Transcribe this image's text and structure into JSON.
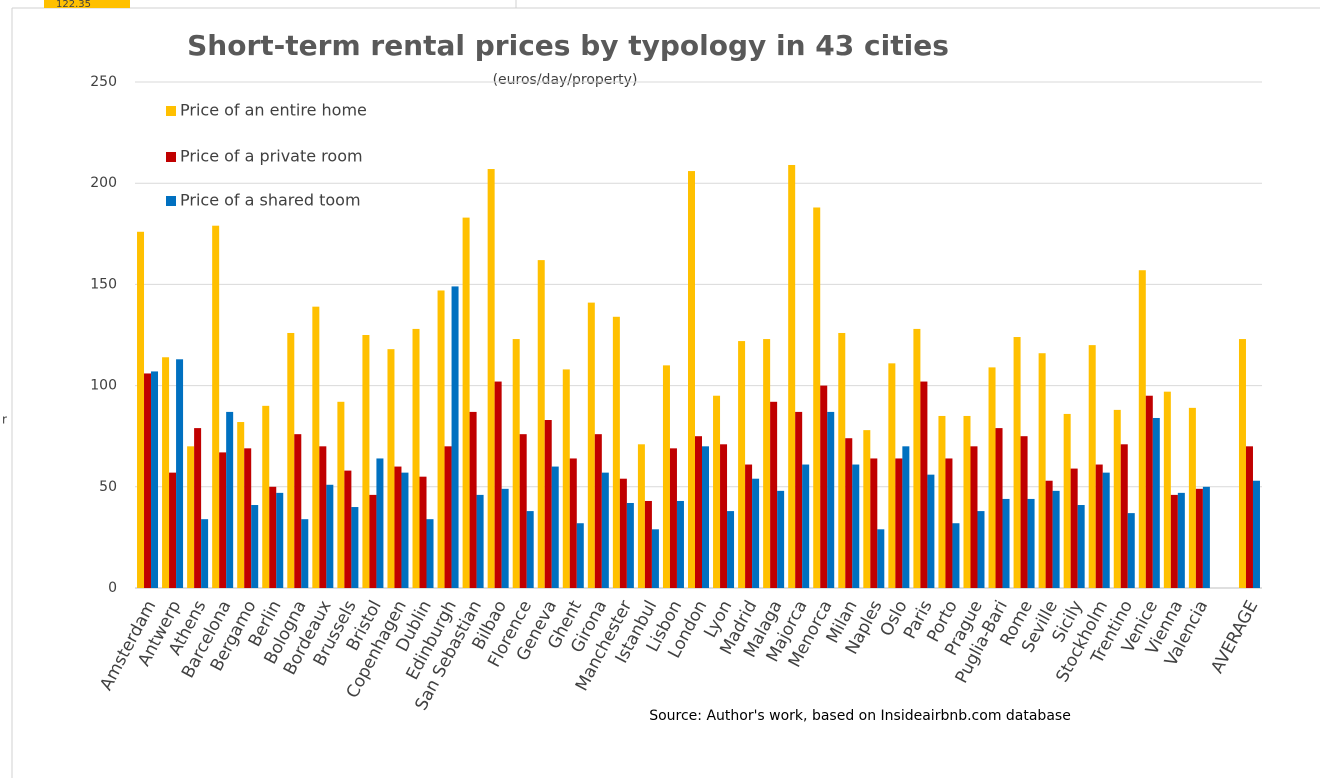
{
  "sheet": {
    "cell": "122.35",
    "fragment": "r"
  },
  "chart_data": {
    "type": "bar",
    "title": "Short-term rental prices by typology in 43 cities",
    "subtitle": "(euros/day/property)",
    "source": "Source:  Author's work, based on Insideairbnb.com database",
    "categories": [
      "Amsterdam",
      "Antwerp",
      "Athens",
      "Barcelona",
      "Bergamo",
      "Berlin",
      "Bologna",
      "Bordeaux",
      "Brussels",
      "Bristol",
      "Copenhagen",
      "Dublin",
      "Edinburgh",
      "San Sebastian",
      "Bilbao",
      "Florence",
      "Geneva",
      "Ghent",
      "Girona",
      "Manchester",
      "Istanbul",
      "Lisbon",
      "London",
      "Lyon",
      "Madrid",
      "Malaga",
      "Majorca",
      "Menorca",
      "Milan",
      "Naples",
      "Oslo",
      "Paris",
      "Porto",
      "Prague",
      "Puglia-Bari",
      "Rome",
      "Seville",
      "Sicily",
      "Stockholm",
      "Trentino",
      "Venice",
      "Vienna",
      "Valencia",
      null,
      "AVERAGE"
    ],
    "series": [
      {
        "name": "Price of an entire home",
        "color": "#FFC000",
        "values": [
          176,
          114,
          70,
          179,
          82,
          90,
          126,
          139,
          92,
          125,
          118,
          128,
          147,
          183,
          207,
          123,
          162,
          108,
          141,
          134,
          71,
          110,
          206,
          95,
          122,
          123,
          209,
          188,
          126,
          78,
          111,
          128,
          85,
          85,
          109,
          124,
          116,
          86,
          120,
          88,
          157,
          97,
          89,
          null,
          123
        ]
      },
      {
        "name": "Price of a private room",
        "color": "#C00000",
        "values": [
          106,
          57,
          79,
          67,
          69,
          50,
          76,
          70,
          58,
          46,
          60,
          55,
          70,
          87,
          102,
          76,
          83,
          64,
          76,
          54,
          43,
          69,
          75,
          71,
          61,
          92,
          87,
          100,
          74,
          64,
          64,
          102,
          64,
          70,
          79,
          75,
          53,
          59,
          61,
          71,
          95,
          46,
          49,
          null,
          70
        ]
      },
      {
        "name": "Price of a shared toom",
        "color": "#0070C0",
        "values": [
          107,
          113,
          34,
          87,
          41,
          47,
          34,
          51,
          40,
          64,
          57,
          34,
          149,
          46,
          49,
          38,
          60,
          32,
          57,
          42,
          29,
          43,
          70,
          38,
          54,
          48,
          61,
          87,
          61,
          29,
          70,
          56,
          32,
          38,
          44,
          44,
          48,
          41,
          57,
          37,
          84,
          47,
          50,
          null,
          53
        ]
      }
    ],
    "ylim": [
      0,
      250
    ],
    "yticks": [
      0,
      50,
      100,
      150,
      200,
      250
    ],
    "grid": true,
    "legend": "top-left"
  }
}
